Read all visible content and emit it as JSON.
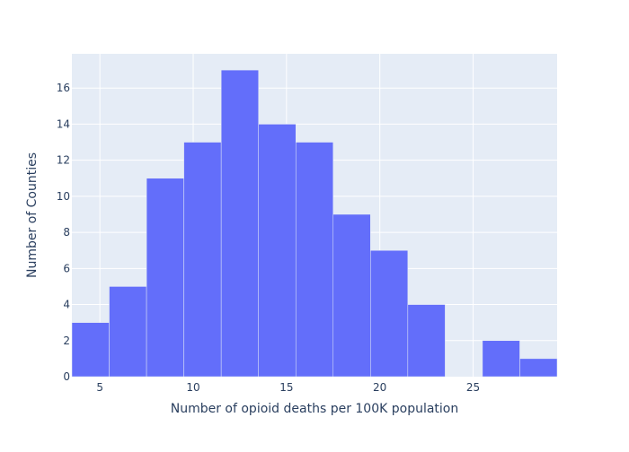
{
  "chart_data": {
    "type": "bar",
    "histogram": true,
    "title": "",
    "xlabel": "Number of opioid deaths per 100K population",
    "ylabel": "Number of Counties",
    "bins": [
      {
        "x0": 3.5,
        "x1": 5.5,
        "count": 3
      },
      {
        "x0": 5.5,
        "x1": 7.5,
        "count": 5
      },
      {
        "x0": 7.5,
        "x1": 9.5,
        "count": 11
      },
      {
        "x0": 9.5,
        "x1": 11.5,
        "count": 13
      },
      {
        "x0": 11.5,
        "x1": 13.5,
        "count": 17
      },
      {
        "x0": 13.5,
        "x1": 15.5,
        "count": 14
      },
      {
        "x0": 15.5,
        "x1": 17.5,
        "count": 13
      },
      {
        "x0": 17.5,
        "x1": 19.5,
        "count": 9
      },
      {
        "x0": 19.5,
        "x1": 21.5,
        "count": 7
      },
      {
        "x0": 21.5,
        "x1": 23.5,
        "count": 4
      },
      {
        "x0": 23.5,
        "x1": 25.5,
        "count": 0
      },
      {
        "x0": 25.5,
        "x1": 27.5,
        "count": 2
      },
      {
        "x0": 27.5,
        "x1": 29.5,
        "count": 1
      }
    ],
    "xlim": [
      3.5,
      29.5
    ],
    "ylim": [
      0,
      17.9
    ],
    "xticks": [
      "5",
      "10",
      "15",
      "20",
      "25"
    ],
    "yticks": [
      "0",
      "2",
      "4",
      "6",
      "8",
      "10",
      "12",
      "14",
      "16"
    ],
    "grid": true,
    "colors": {
      "bar": "#636efa",
      "plot_background": "#e5ecf6",
      "grid": "#ffffff",
      "text": "#2a3f5f"
    }
  }
}
